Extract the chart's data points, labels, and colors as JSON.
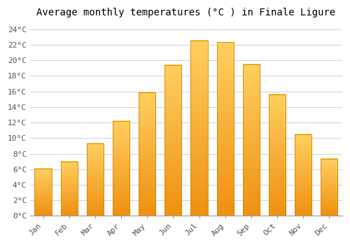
{
  "title": "Average monthly temperatures (°C ) in Finale Ligure",
  "months": [
    "Jan",
    "Feb",
    "Mar",
    "Apr",
    "May",
    "Jun",
    "Jul",
    "Aug",
    "Sep",
    "Oct",
    "Nov",
    "Dec"
  ],
  "values": [
    6.1,
    7.0,
    9.3,
    12.2,
    15.9,
    19.4,
    22.5,
    22.3,
    19.5,
    15.6,
    10.5,
    7.3
  ],
  "bar_color_top": "#FFD060",
  "bar_color_bottom": "#F09010",
  "bar_edge_color": "#CC8800",
  "background_color": "#FFFFFF",
  "plot_bg_color": "#FFFFFF",
  "grid_color": "#CCCCCC",
  "ylim": [
    0,
    25
  ],
  "yticks": [
    0,
    2,
    4,
    6,
    8,
    10,
    12,
    14,
    16,
    18,
    20,
    22,
    24
  ],
  "title_fontsize": 10,
  "tick_fontsize": 8,
  "font_family": "monospace"
}
